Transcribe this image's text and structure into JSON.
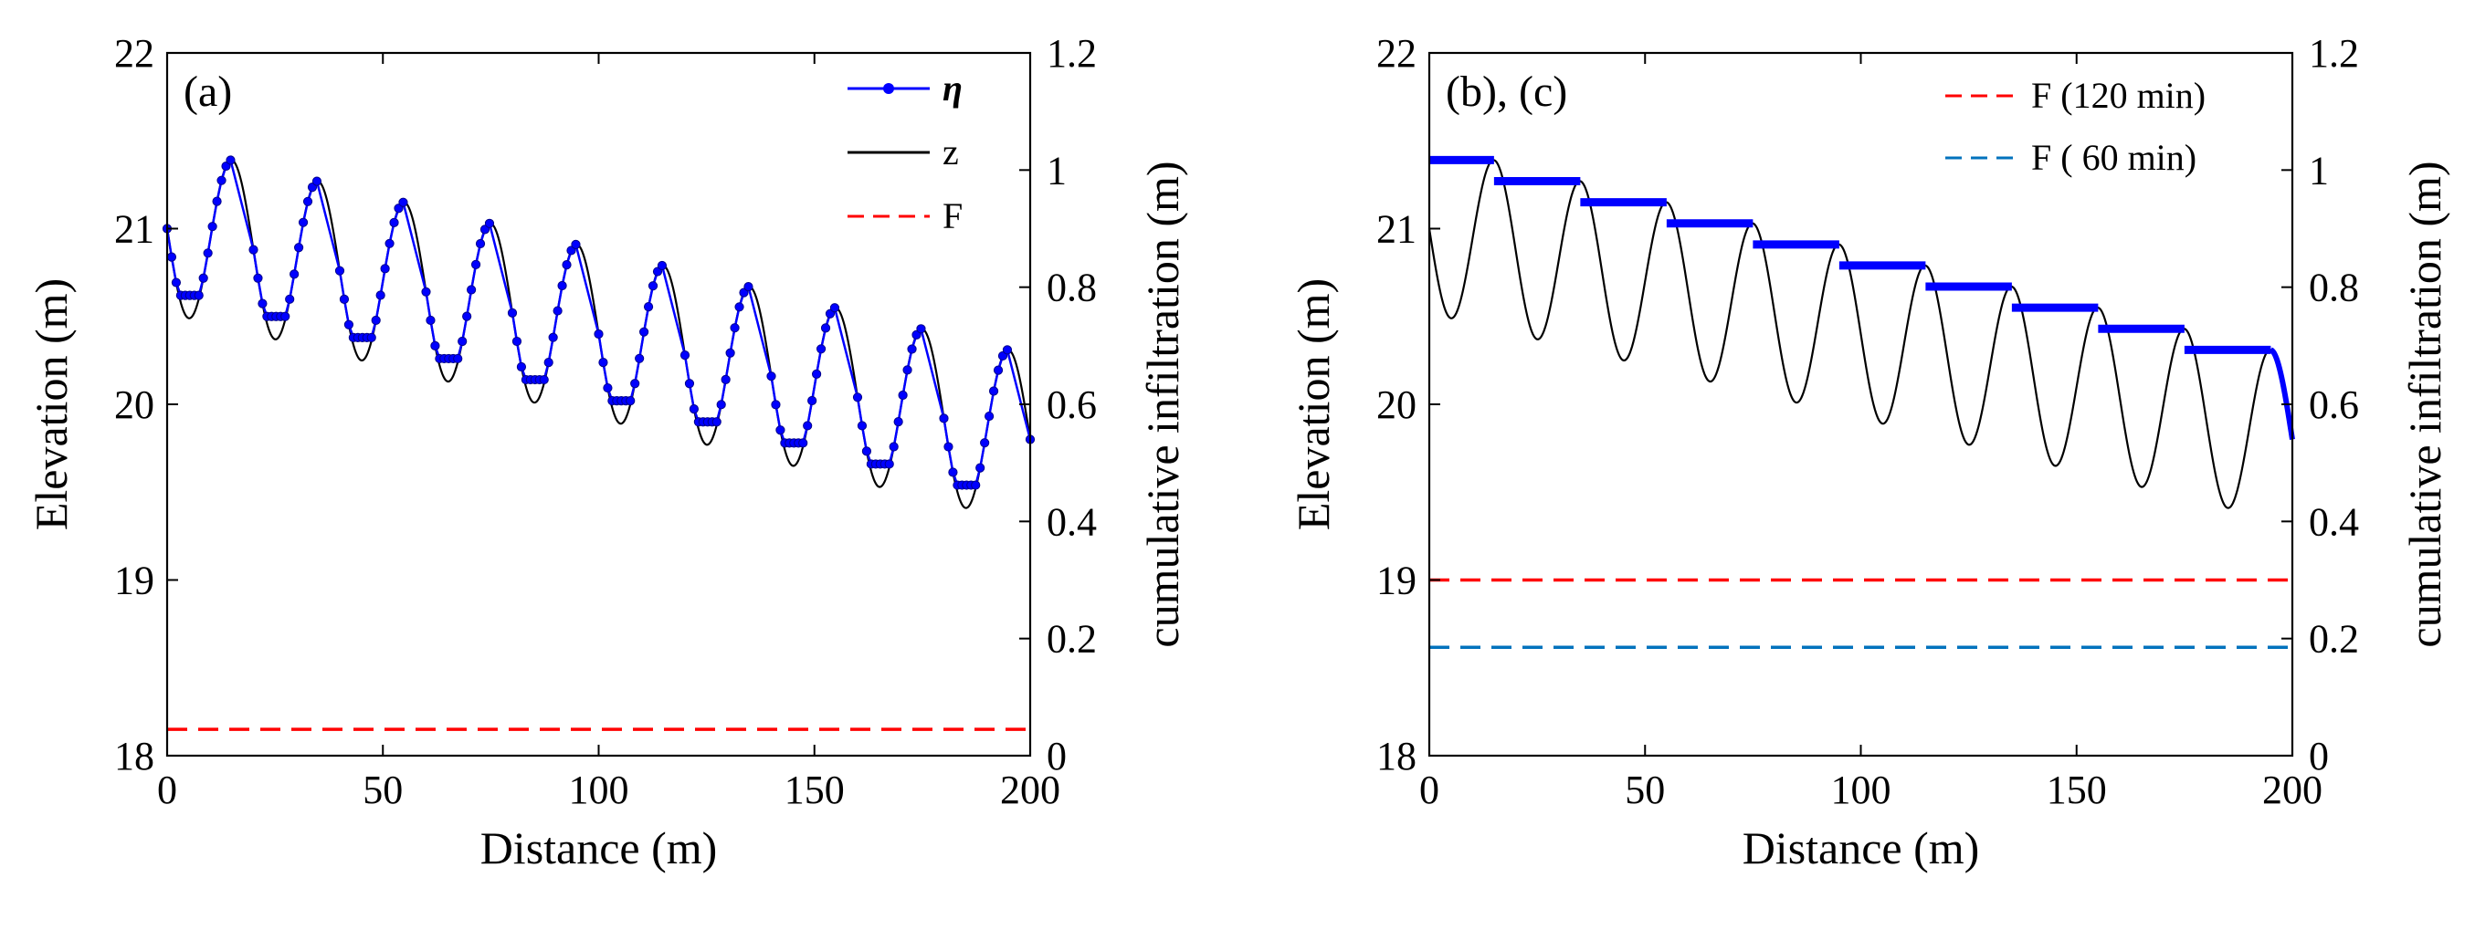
{
  "chart_data": [
    {
      "panel": "a",
      "type": "line",
      "panel_label": "(a)",
      "xlabel": "Distance (m)",
      "ylabel": "Elevation (m)",
      "ylabel_right": "cumulative infiltration (m)",
      "xlim": [
        0,
        200
      ],
      "ylim": [
        18,
        22
      ],
      "ylim_right": [
        0,
        1.2
      ],
      "xticks": [
        0,
        50,
        100,
        150,
        200
      ],
      "yticks": [
        18,
        19,
        20,
        21,
        22
      ],
      "yticks_right": [
        "0",
        "0.2",
        "0.4",
        "0.6",
        "0.8",
        "1",
        "1.2"
      ],
      "yticks_right_values": [
        0,
        0.2,
        0.4,
        0.6,
        0.8,
        1.0,
        1.2
      ],
      "surface": {
        "base": 21.0,
        "slope": -0.006,
        "amplitude": 0.48,
        "wavelength": 20
      },
      "legend": [
        {
          "label": "η",
          "color": "#0000ff",
          "style": "line-dot"
        },
        {
          "label": "z",
          "color": "#000000",
          "style": "solid"
        },
        {
          "label": "F",
          "color": "#ff0000",
          "style": "dashed"
        }
      ],
      "series": [
        {
          "name": "η",
          "kind": "water_surface_pooled",
          "color": "#0000ff"
        },
        {
          "name": "z",
          "kind": "bed_profile",
          "color": "#000000"
        },
        {
          "name": "F",
          "axis": "right",
          "value": 0.045,
          "color": "#ff0000",
          "style": "dashed"
        }
      ]
    },
    {
      "panel": "b",
      "type": "line",
      "panel_label": "(b), (c)",
      "xlabel": "Distance (m)",
      "ylabel": "Elevation (m)",
      "ylabel_right": "cumulative infiltration (m)",
      "xlim": [
        0,
        200
      ],
      "ylim": [
        18,
        22
      ],
      "ylim_right": [
        0,
        1.2
      ],
      "xticks": [
        0,
        50,
        100,
        150,
        200
      ],
      "yticks": [
        18,
        19,
        20,
        21,
        22
      ],
      "yticks_right": [
        "0",
        "0.2",
        "0.4",
        "0.6",
        "0.8",
        "1",
        "1.2"
      ],
      "yticks_right_values": [
        0,
        0.2,
        0.4,
        0.6,
        0.8,
        1.0,
        1.2
      ],
      "surface": {
        "base": 21.0,
        "slope": -0.006,
        "amplitude": 0.48,
        "wavelength": 20
      },
      "legend": [
        {
          "label": "F (120 min)",
          "color": "#ff0000",
          "style": "dashed"
        },
        {
          "label": "F ( 60  min)",
          "color": "#0072bd",
          "style": "dashed"
        }
      ],
      "series": [
        {
          "name": "η",
          "kind": "water_surface_steps",
          "color": "#0000ff"
        },
        {
          "name": "z",
          "kind": "bed_profile",
          "color": "#000000"
        },
        {
          "name": "F (120 min)",
          "axis": "right",
          "value": 0.3,
          "color": "#ff0000",
          "style": "dashed"
        },
        {
          "name": "F ( 60  min)",
          "axis": "right",
          "value": 0.185,
          "color": "#0072bd",
          "style": "dashed"
        }
      ]
    }
  ]
}
